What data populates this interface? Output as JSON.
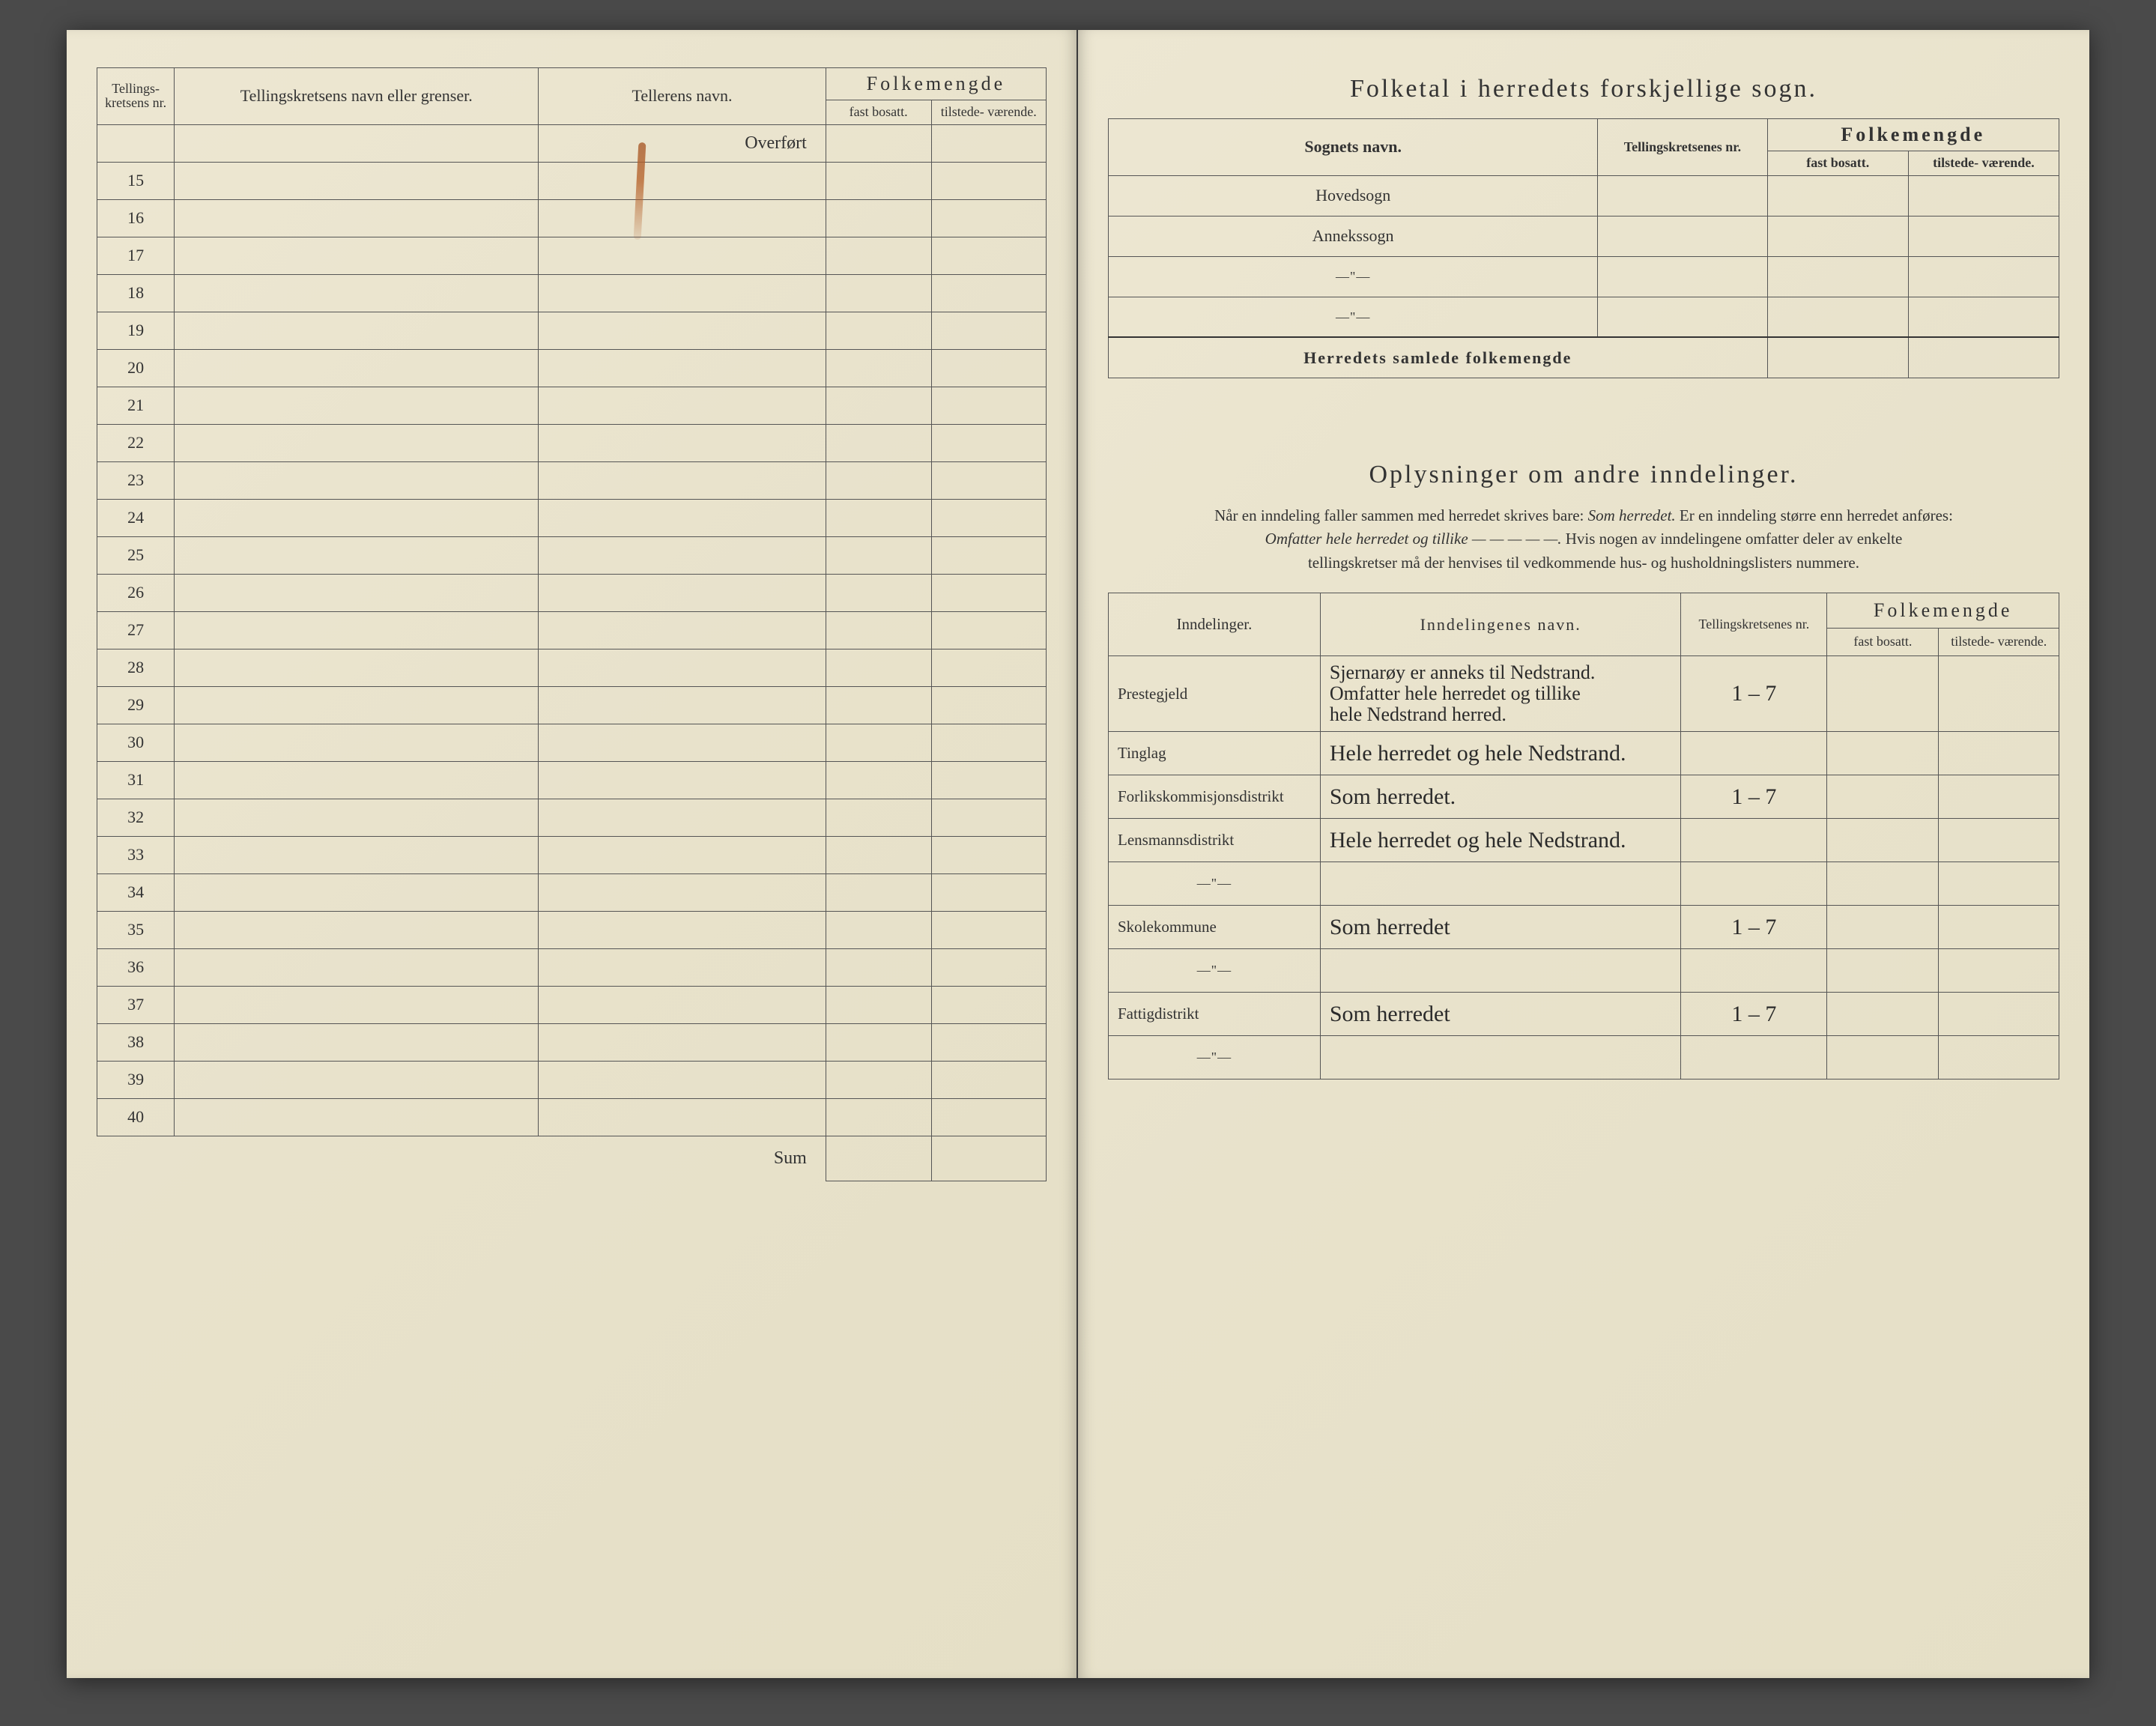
{
  "leftPage": {
    "headers": {
      "tellingskretsens_nr": "Tellings-\nkretsens\nnr.",
      "tellingskretsens_navn": "Tellingskretsens navn eller grenser.",
      "tellerens_navn": "Tellerens navn.",
      "folkemengde": "Folkemengde",
      "fast_bosatt": "fast\nbosatt.",
      "tilstede_vaerende": "tilstede-\nværende."
    },
    "overfort": "Overført",
    "rowStart": 15,
    "rowEnd": 40,
    "sum": "Sum"
  },
  "rightPage": {
    "section1": {
      "title": "Folketal i herredets forskjellige sogn.",
      "headers": {
        "sognets_navn": "Sognets navn.",
        "tellingskretsenes_nr": "Tellingskretsenes\nnr.",
        "folkemengde": "Folkemengde",
        "fast_bosatt": "fast\nbosatt.",
        "tilstede_vaerende": "tilstede-\nværende."
      },
      "rows": [
        {
          "label": "Hovedsogn"
        },
        {
          "label": "Annekssogn"
        },
        {
          "label": "—\"—"
        },
        {
          "label": "—\"—"
        }
      ],
      "samlede": "Herredets samlede folkemengde"
    },
    "section2": {
      "title": "Oplysninger om andre inndelinger.",
      "intro_line1_a": "Når en inndeling faller sammen med herredet skrives bare: ",
      "intro_line1_b": "Som herredet.",
      "intro_line1_c": "  Er en inndeling større enn herredet anføres:",
      "intro_line2_a": "Omfatter hele herredet og tillike — — — — —.",
      "intro_line2_b": "  Hvis nogen av inndelingene omfatter deler av enkelte",
      "intro_line3": "tellingskretser må der henvises til vedkommende hus- og husholdningslisters nummere.",
      "headers": {
        "inndelinger": "Inndelinger.",
        "inndelingenes_navn": "Inndelingenes navn.",
        "tellingskretsenes_nr": "Tellingskretsenes\nnr.",
        "folkemengde": "Folkemengde",
        "fast_bosatt": "fast\nbosatt.",
        "tilstede_vaerende": "tilstede-\nværende."
      },
      "rows": [
        {
          "label": "Prestegjeld",
          "hand": "Sjernarøy er anneks til Nedstrand.\nOmfatter hele herredet og tillike\nhele Nedstrand herred.",
          "nr": "1 – 7"
        },
        {
          "label": "Tinglag",
          "hand": "Hele herredet og hele Nedstrand.",
          "nr": ""
        },
        {
          "label": "Forlikskommisjonsdistrikt",
          "hand": "Som herredet.",
          "nr": "1 – 7"
        },
        {
          "label": "Lensmannsdistrikt",
          "hand": "Hele herredet og hele Nedstrand.",
          "nr": ""
        },
        {
          "label": "—\"—",
          "hand": "",
          "nr": ""
        },
        {
          "label": "Skolekommune",
          "hand": "Som herredet",
          "nr": "1 – 7"
        },
        {
          "label": "—\"—",
          "hand": "",
          "nr": ""
        },
        {
          "label": "Fattigdistrikt",
          "hand": "Som herredet",
          "nr": "1 – 7"
        },
        {
          "label": "—\"—",
          "hand": "",
          "nr": ""
        }
      ]
    }
  }
}
